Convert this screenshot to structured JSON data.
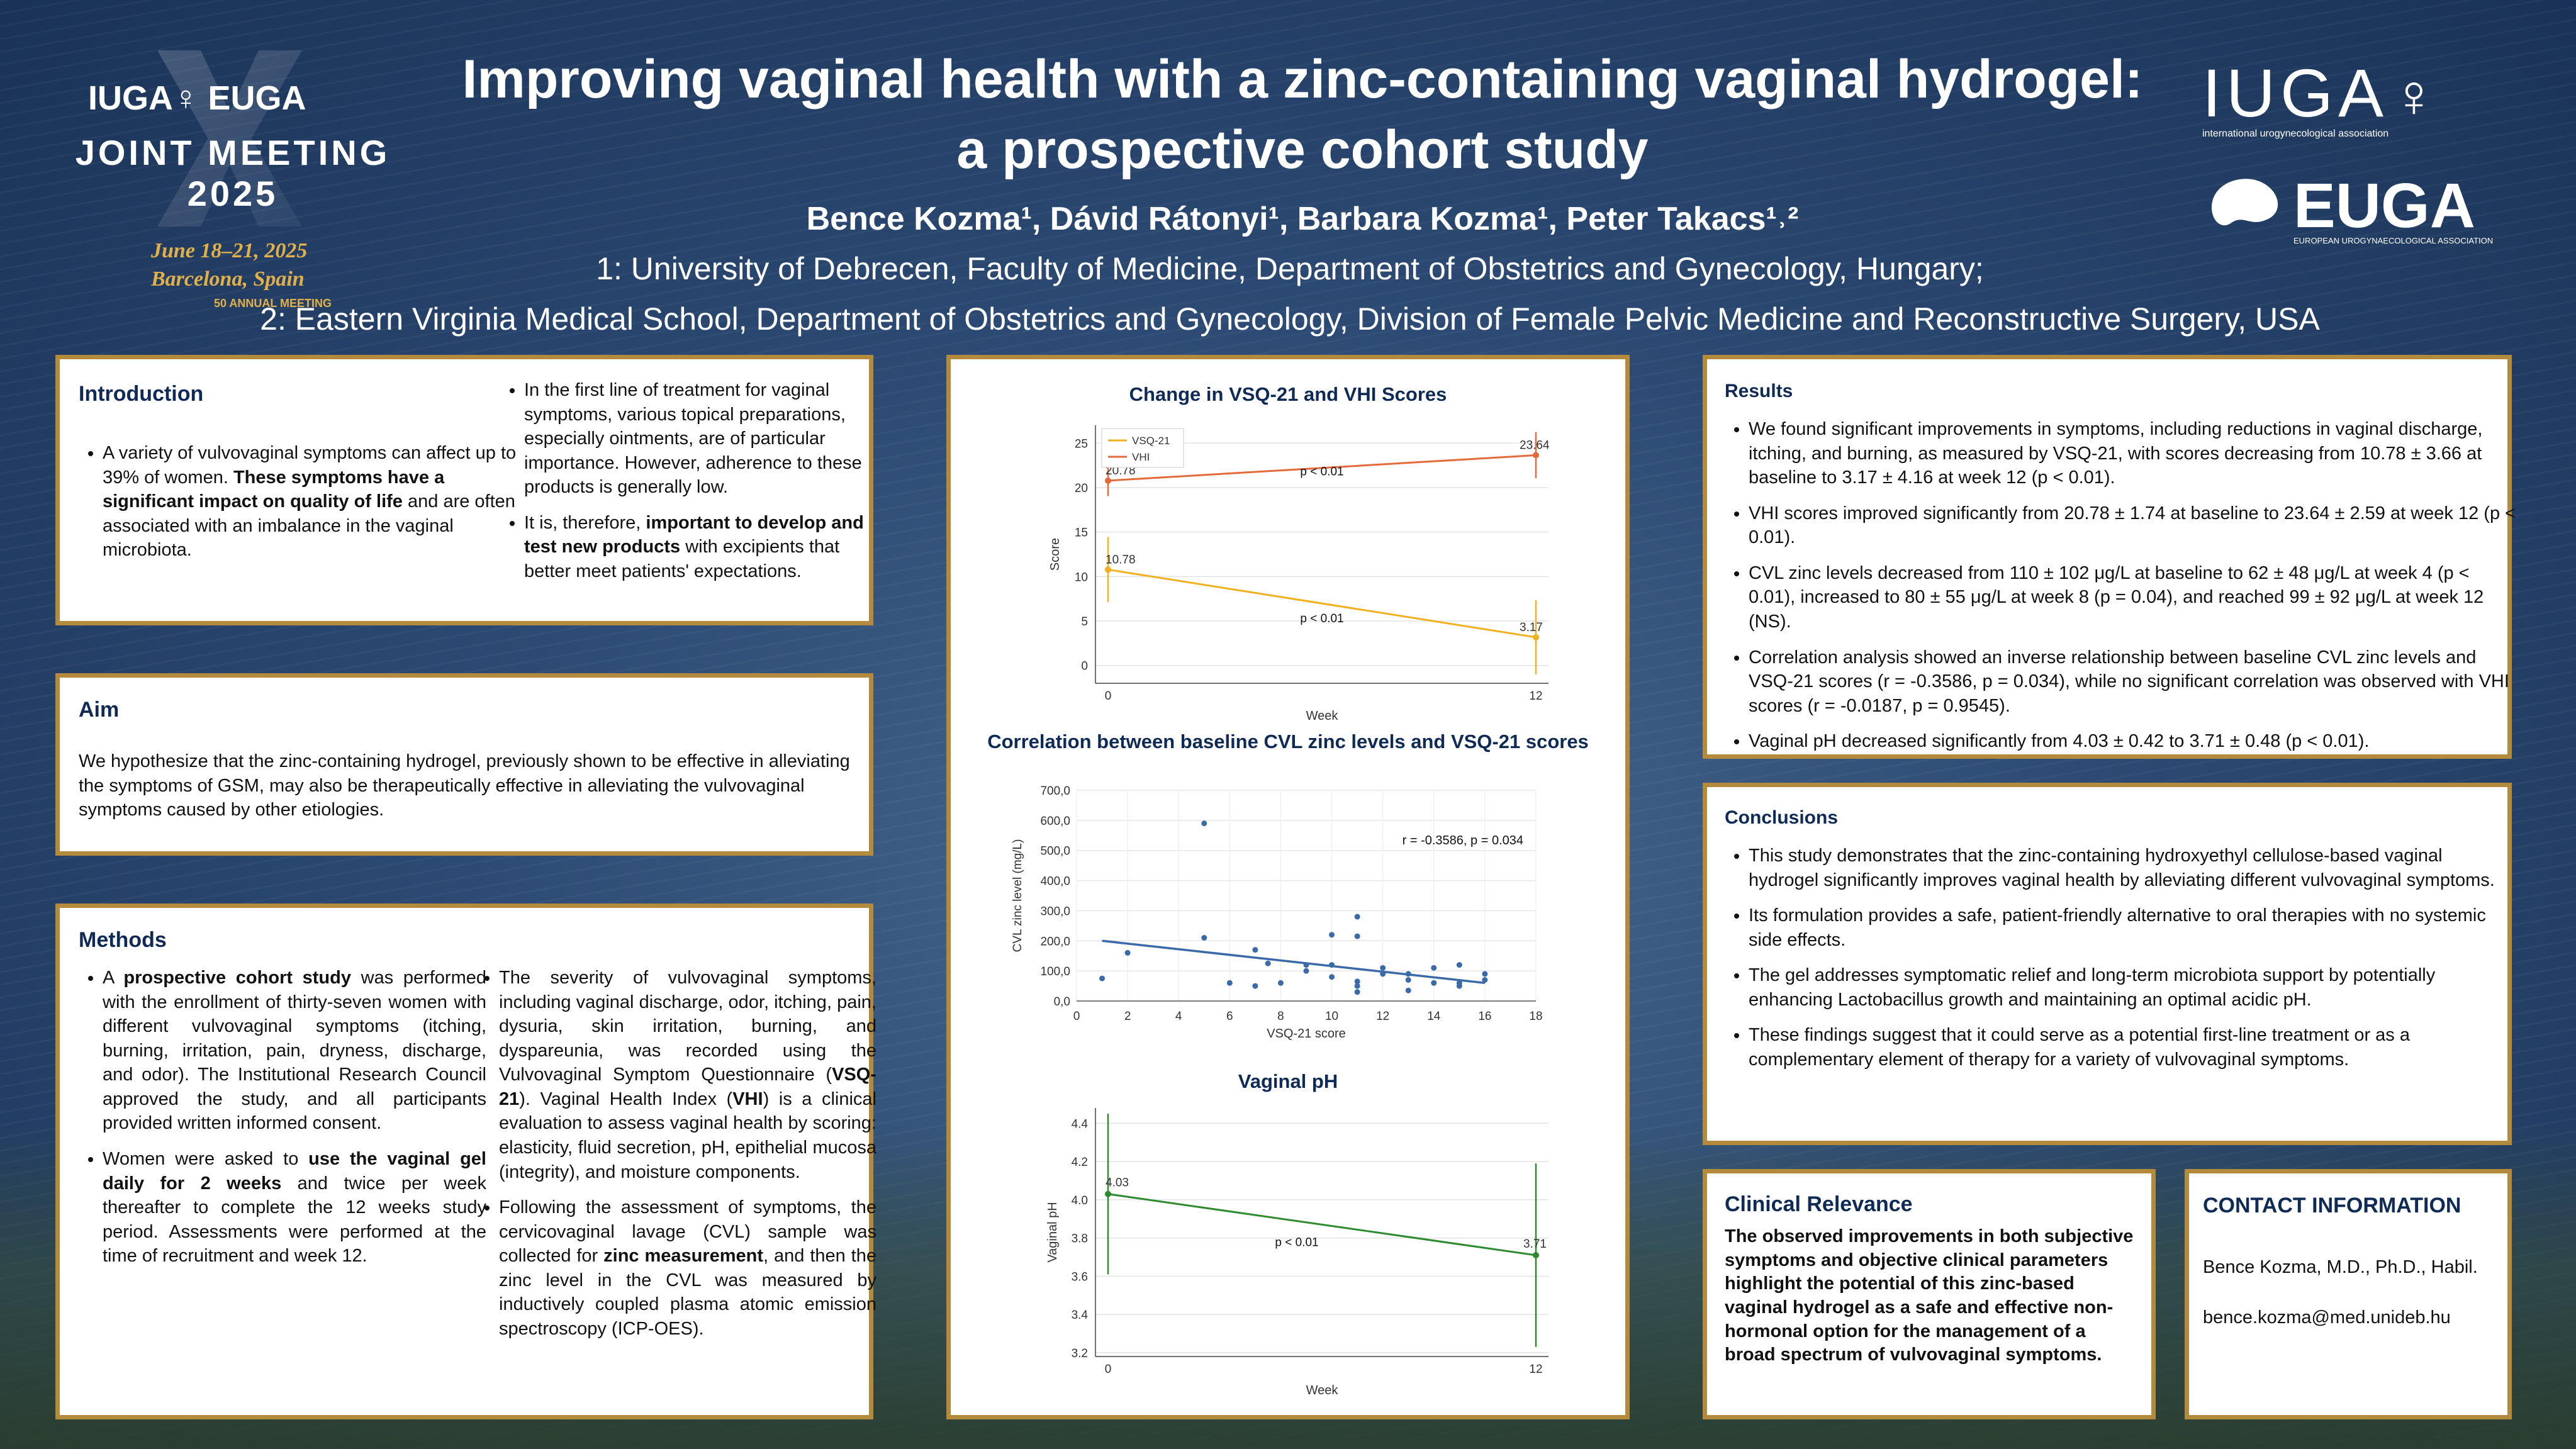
{
  "colors": {
    "accent": "#b48a3c",
    "heading": "#0f2b55",
    "vsq": "#f0b020",
    "vhi": "#e36a3a",
    "corr_line": "#3a6aa8",
    "ph": "#2e8a2e"
  },
  "meeting_logo": {
    "line1": "IUGA♀ EUGA",
    "line2": "JOINT MEETING",
    "line3": "2025",
    "date": "June 18–21, 2025",
    "place": "Barcelona, Spain",
    "annual": "50 ANNUAL MEETING"
  },
  "header": {
    "title_line1": "Improving vaginal health with a zinc-containing vaginal hydrogel:",
    "title_line2": "a prospective cohort study",
    "authors": "Bence Kozma¹, Dávid Rátonyi¹, Barbara Kozma¹, Peter Takacs¹˒²",
    "aff1": "1: University of Debrecen, Faculty of Medicine, Department of Obstetrics and Gynecology, Hungary;",
    "aff2": "2: Eastern Virginia Medical School, Department of Obstetrics and Gynecology, Division of Female Pelvic Medicine and Reconstructive Surgery, USA"
  },
  "org_logos": {
    "iuga": "IUGA",
    "iuga_sub": "international urogynecological association",
    "euga": "EUGA",
    "euga_sub": "EUROPEAN UROGYNAECOLOGICAL ASSOCIATION"
  },
  "introduction": {
    "heading": "Introduction",
    "b1_a": "A variety of vulvovaginal symptoms can affect up to 39% of women.",
    "b1_bold": "These symptoms have a significant impact on quality of life",
    "b1_c": "and are often associated with an imbalance in the vaginal microbiota.",
    "b2": "In the first line of treatment for vaginal symptoms, various topical preparations, especially ointments, are of particular importance. However, adherence to these products is generally low.",
    "b3_a": "It is, therefore,",
    "b3_bold": "important to develop and test new products",
    "b3_c": "with excipients that better meet patients' expectations."
  },
  "aim": {
    "heading": "Aim",
    "text": "We hypothesize that the zinc-containing hydrogel, previously shown to be effective in alleviating the symptoms of GSM, may also be therapeutically effective in alleviating the vulvovaginal symptoms caused by other etiologies."
  },
  "methods": {
    "heading": "Methods",
    "b1_a": "A",
    "b1_bold": "prospective cohort study",
    "b1_c": "was performed with the enrollment of thirty-seven women with different vulvovaginal symptoms (itching, burning, irritation, pain, dryness, discharge, and odor). The Institutional Research Council approved the study, and all participants provided written informed consent.",
    "b2_a": "Women were asked to",
    "b2_bold": "use the vaginal gel daily for 2 weeks",
    "b2_c": "and twice per week thereafter to complete the 12 weeks study period. Assessments were performed at the time of recruitment and week 12.",
    "b3_a": "The severity of vulvovaginal symptoms, including vaginal discharge, odor, itching, pain, dysuria, skin irritation, burning, and dyspareunia, was recorded using the Vulvovaginal Symptom Questionnaire (",
    "b3_bold1": "VSQ-21",
    "b3_b": "). Vaginal Health Index (",
    "b3_bold2": "VHI",
    "b3_c": ") is a clinical evaluation to assess vaginal health by scoring: elasticity, fluid secretion, pH, epithelial mucosa (integrity), and moisture components.",
    "b4_a": "Following the assessment of symptoms, the cervicovaginal lavage (CVL) sample was collected for",
    "b4_bold": "zinc measurement",
    "b4_c": ", and then the zinc level in the CVL was measured by inductively coupled plasma atomic emission spectroscopy (ICP-OES)."
  },
  "results": {
    "heading": "Results",
    "items": [
      "We found significant improvements in symptoms, including reductions in vaginal discharge, itching, and burning, as measured by VSQ-21, with scores decreasing from 10.78 ± 3.66 at baseline to 3.17 ± 4.16 at week 12 (p < 0.01).",
      "VHI scores improved significantly from 20.78 ± 1.74 at baseline to 23.64 ± 2.59 at week 12 (p < 0.01).",
      "CVL zinc levels decreased from 110 ± 102 μg/L at baseline to 62 ± 48 μg/L at week 4 (p < 0.01), increased to 80 ± 55 μg/L at week 8 (p = 0.04), and reached 99 ± 92 μg/L at week 12 (NS).",
      "Correlation analysis showed an inverse relationship between baseline CVL zinc levels and VSQ-21 scores (r = -0.3586, p = 0.034), while no significant correlation was observed with VHI scores (r = -0.0187, p = 0.9545).",
      "Vaginal pH decreased significantly from 4.03 ± 0.42 to 3.71 ± 0.48 (p < 0.01)."
    ]
  },
  "conclusions": {
    "heading": "Conclusions",
    "items": [
      "This study demonstrates that the zinc-containing hydroxyethyl cellulose-based vaginal hydrogel significantly improves vaginal health by alleviating different vulvovaginal symptoms.",
      "Its formulation provides a safe, patient-friendly alternative to oral therapies with no systemic side effects.",
      "The gel addresses symptomatic relief and long-term microbiota support by potentially enhancing Lactobacillus growth and maintaining an optimal acidic pH.",
      "These findings suggest that it could serve as a potential first-line treatment or as a complementary element of therapy for a variety of vulvovaginal symptoms."
    ]
  },
  "clinical": {
    "heading": "Clinical Relevance",
    "text": "The observed improvements in both subjective symptoms and objective clinical parameters highlight the potential of this zinc-based vaginal hydrogel as a safe and effective non-hormonal option for the management of a broad spectrum of vulvovaginal symptoms."
  },
  "contact": {
    "heading": "CONTACT INFORMATION",
    "name": "Bence Kozma, M.D., Ph.D., Habil.",
    "email": "bence.kozma@med.unideb.hu"
  },
  "chart_data": [
    {
      "type": "line",
      "title": "Change in VSQ-21 and VHI Scores",
      "xlabel": "Week",
      "ylabel": "Score",
      "x": [
        0,
        12
      ],
      "xticks": [
        "0",
        "12"
      ],
      "ylim": [
        -2,
        27
      ],
      "yticks": [
        "0",
        "5",
        "10",
        "15",
        "20",
        "25"
      ],
      "series": [
        {
          "name": "VSQ-21",
          "values": [
            10.78,
            3.17
          ],
          "err": [
            3.66,
            4.16
          ],
          "labels": [
            "10.78",
            "3.17"
          ],
          "p": "p < 0.01"
        },
        {
          "name": "VHI",
          "values": [
            20.78,
            23.64
          ],
          "err": [
            1.74,
            2.59
          ],
          "labels": [
            "20.78",
            "23.64"
          ],
          "p": "p < 0.01"
        }
      ],
      "legend": "top-left",
      "grid": true
    },
    {
      "type": "scatter",
      "title": "Correlation between baseline CVL zinc levels and VSQ-21 scores",
      "xlabel": "VSQ-21 score",
      "ylabel": "CVL zinc level (mg/L)",
      "xlim": [
        0,
        18
      ],
      "ylim": [
        0,
        700
      ],
      "xticks": [
        "0",
        "2",
        "4",
        "6",
        "8",
        "10",
        "12",
        "14",
        "16",
        "18"
      ],
      "yticks": [
        "0,0",
        "100,0",
        "200,0",
        "300,0",
        "400,0",
        "500,0",
        "600,0",
        "700,0"
      ],
      "annotation": "r = -0.3586, p = 0.034",
      "points": [
        [
          1,
          75
        ],
        [
          2,
          160
        ],
        [
          5,
          590
        ],
        [
          5,
          210
        ],
        [
          6,
          60
        ],
        [
          7,
          50
        ],
        [
          7,
          170
        ],
        [
          7.5,
          125
        ],
        [
          8,
          60
        ],
        [
          9,
          120
        ],
        [
          9,
          100
        ],
        [
          10,
          220
        ],
        [
          10,
          80
        ],
        [
          10,
          120
        ],
        [
          11,
          50
        ],
        [
          11,
          30
        ],
        [
          11,
          280
        ],
        [
          11,
          215
        ],
        [
          11,
          65
        ],
        [
          12,
          90
        ],
        [
          12,
          110
        ],
        [
          13,
          35
        ],
        [
          13,
          90
        ],
        [
          13,
          70
        ],
        [
          14,
          110
        ],
        [
          14,
          60
        ],
        [
          15,
          60
        ],
        [
          15,
          120
        ],
        [
          15,
          50
        ],
        [
          16,
          70
        ],
        [
          16,
          90
        ]
      ],
      "trend": [
        [
          1,
          200
        ],
        [
          16,
          60
        ]
      ],
      "grid": true
    },
    {
      "type": "line",
      "title": "Vaginal pH",
      "xlabel": "Week",
      "ylabel": "Vaginal pH",
      "x": [
        0,
        12
      ],
      "xticks": [
        "0",
        "12"
      ],
      "ylim": [
        3.18,
        4.48
      ],
      "yticks": [
        "3.2",
        "3.4",
        "3.6",
        "3.8",
        "4.0",
        "4.2",
        "4.4"
      ],
      "series": [
        {
          "name": "pH",
          "values": [
            4.03,
            3.71
          ],
          "err": [
            0.42,
            0.48
          ],
          "labels": [
            "4.03",
            "3.71"
          ],
          "p": "p < 0.01"
        }
      ],
      "grid": true
    }
  ]
}
